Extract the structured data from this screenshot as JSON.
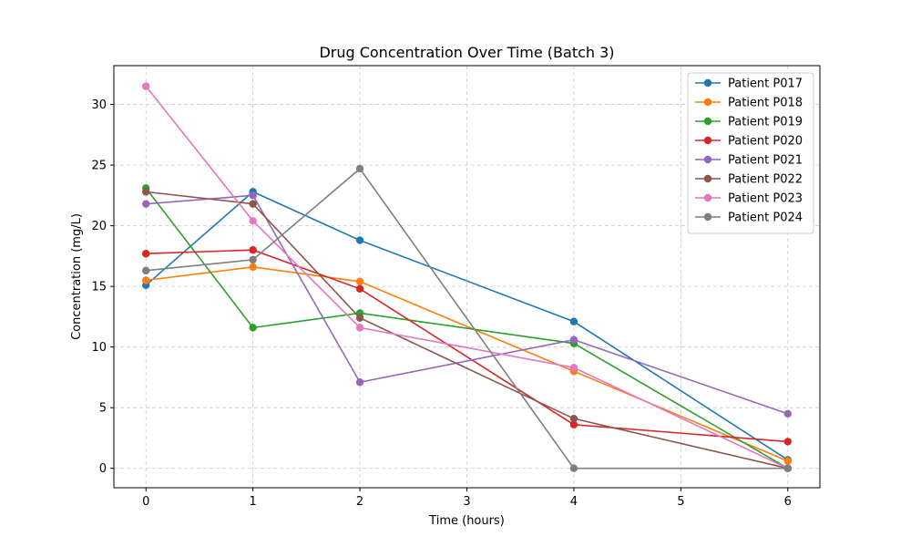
{
  "chart_data": {
    "type": "line",
    "title": "Drug Concentration Over Time (Batch 3)",
    "xlabel": "Time (hours)",
    "ylabel": "Concentration (mg/L)",
    "x": [
      0,
      1,
      2,
      4,
      6
    ],
    "xlim": [
      -0.3,
      6.3
    ],
    "ylim": [
      -1.6,
      33.2
    ],
    "xticks": [
      0,
      1,
      2,
      3,
      4,
      5,
      6
    ],
    "yticks": [
      0,
      5,
      10,
      15,
      20,
      25,
      30
    ],
    "grid": true,
    "grid_style": "dashed",
    "legend_position": "top-right",
    "marker": "circle",
    "series": [
      {
        "name": "Patient P017",
        "color": "#1f77b4",
        "values": [
          15.1,
          22.8,
          18.8,
          12.1,
          0.7
        ]
      },
      {
        "name": "Patient P018",
        "color": "#ff7f0e",
        "values": [
          15.5,
          16.6,
          15.4,
          8.0,
          0.6
        ]
      },
      {
        "name": "Patient P019",
        "color": "#2ca02c",
        "values": [
          23.1,
          11.6,
          12.8,
          10.3,
          0.0
        ]
      },
      {
        "name": "Patient P020",
        "color": "#d62728",
        "values": [
          17.7,
          18.0,
          14.8,
          3.6,
          2.2
        ]
      },
      {
        "name": "Patient P021",
        "color": "#9467bd",
        "values": [
          21.8,
          22.5,
          7.1,
          10.6,
          4.5
        ]
      },
      {
        "name": "Patient P022",
        "color": "#8c564b",
        "values": [
          22.8,
          21.8,
          12.4,
          4.1,
          0.0
        ]
      },
      {
        "name": "Patient P023",
        "color": "#e377c2",
        "values": [
          31.5,
          20.4,
          11.6,
          8.3,
          0.0
        ]
      },
      {
        "name": "Patient P024",
        "color": "#7f7f7f",
        "values": [
          16.3,
          17.2,
          24.7,
          0.0,
          0.0
        ]
      }
    ]
  }
}
